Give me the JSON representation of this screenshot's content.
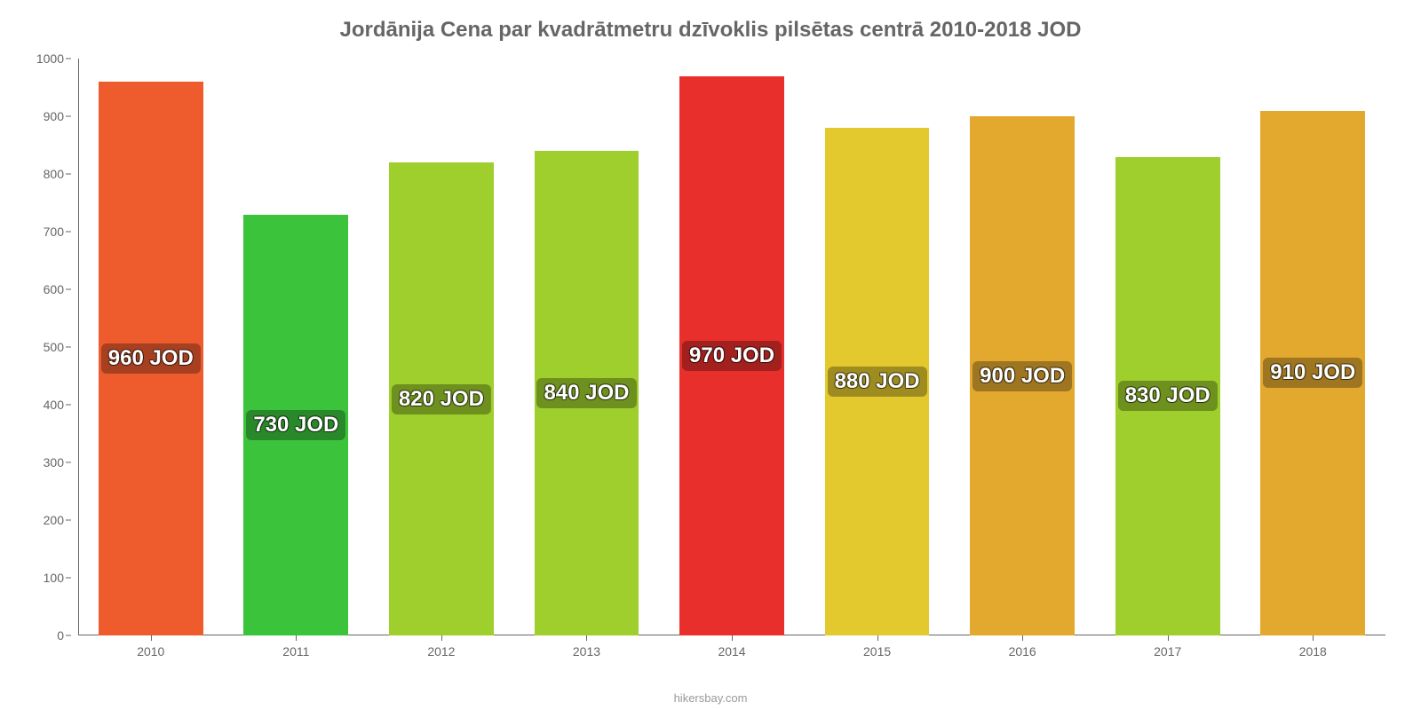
{
  "chart": {
    "type": "bar",
    "title": "Jordānija Cena par kvadrātmetru dzīvoklis pilsētas centrā 2010-2018 JOD",
    "title_fontsize": 24,
    "title_color": "#666666",
    "background_color": "#ffffff",
    "axis_color": "#666666",
    "tick_font_color": "#666666",
    "tick_fontsize": 14,
    "y": {
      "min": 0,
      "max": 1000,
      "step": 100,
      "ticks": [
        0,
        100,
        200,
        300,
        400,
        500,
        600,
        700,
        800,
        900,
        1000
      ]
    },
    "categories": [
      "2010",
      "2011",
      "2012",
      "2013",
      "2014",
      "2015",
      "2016",
      "2017",
      "2018"
    ],
    "values": [
      960,
      730,
      820,
      840,
      970,
      880,
      900,
      830,
      910
    ],
    "value_labels": [
      "960 JOD",
      "730 JOD",
      "820 JOD",
      "840 JOD",
      "970 JOD",
      "880 JOD",
      "900 JOD",
      "830 JOD",
      "910 JOD"
    ],
    "bar_colors": [
      "#ee5c2e",
      "#3cc33c",
      "#9ecf2c",
      "#9ecf2c",
      "#e92f2c",
      "#e3c92e",
      "#e3a82e",
      "#9ecf2c",
      "#e3a82e"
    ],
    "bar_width_ratio": 0.72,
    "value_label_fontsize": 24,
    "value_label_color": "#ffffff",
    "value_label_bg": "rgba(0,0,0,0.30)",
    "value_label_y_ratio": 0.5,
    "attribution": "hikersbay.com",
    "attribution_color": "#999999",
    "attribution_fontsize": 13
  }
}
